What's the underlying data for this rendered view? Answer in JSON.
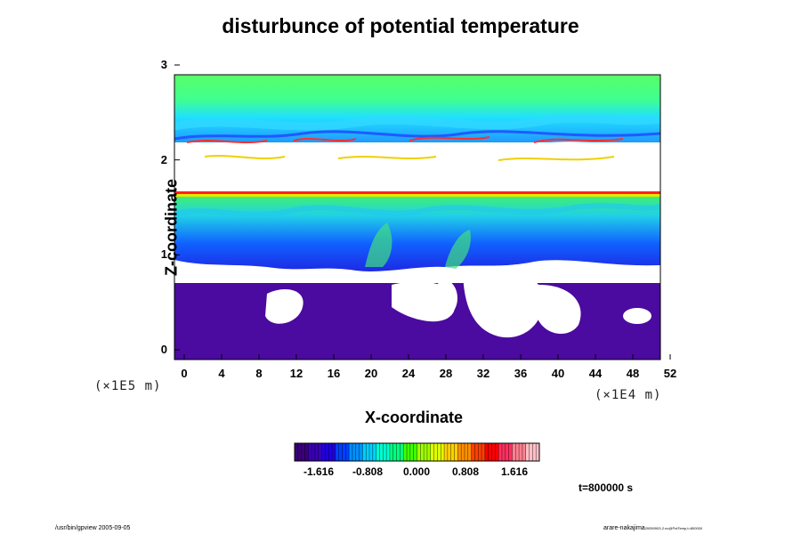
{
  "chart_data": {
    "type": "heatmap",
    "title": "disturbunce of potential temperature",
    "xlabel": "X-coordinate",
    "ylabel": "Z-coordinate",
    "xlim": [
      0,
      52
    ],
    "ylim": [
      0,
      3
    ],
    "x_ticks": [
      "0",
      "4",
      "8",
      "12",
      "16",
      "20",
      "24",
      "28",
      "32",
      "36",
      "40",
      "44",
      "48",
      "52"
    ],
    "y_ticks": [
      "0",
      "1",
      "2",
      "3"
    ],
    "x_scale_left": "(×1E5 m)",
    "x_scale_right": "(×1E4 m)",
    "colorbar": {
      "ticks": [
        "-1.616",
        "-0.808",
        "0.000",
        "0.808",
        "1.616"
      ],
      "colors": [
        "#3a0078",
        "#3a00b8",
        "#2000e0",
        "#0040ff",
        "#0090ff",
        "#00d0ff",
        "#00ffd0",
        "#00ff80",
        "#40ff00",
        "#a0ff00",
        "#e0ff00",
        "#ffd000",
        "#ff9000",
        "#ff4000",
        "#ff0000",
        "#ff3060",
        "#ff8090",
        "#ffc0c8"
      ]
    },
    "bands": [
      {
        "z_from": 0.0,
        "z_to": 0.85,
        "color": "#4b0aa0",
        "description_value": "below -1.616"
      },
      {
        "z_from": 0.85,
        "z_to": 1.0,
        "color": "#ffffff"
      },
      {
        "z_from": 1.0,
        "z_to": 1.35,
        "color": "#1e3cf0"
      },
      {
        "z_from": 1.35,
        "z_to": 1.7,
        "color": "#20b8ff"
      },
      {
        "z_from": 1.7,
        "z_to": 1.78,
        "color": "#30e060"
      },
      {
        "z_from": 1.78,
        "z_to": 2.3,
        "color": "#ffffff"
      },
      {
        "z_from": 2.3,
        "z_to": 2.55,
        "color": "#2bd8ff"
      },
      {
        "z_from": 2.55,
        "z_to": 3.0,
        "color": "#50ff70"
      }
    ],
    "time_label": "t=800000 s"
  },
  "footer": {
    "left": "/usr/bin/gpview 2005-09-05",
    "right": "arare-nakajima",
    "right_small": "20050903-2.nc@PotTemp,t=800000"
  }
}
